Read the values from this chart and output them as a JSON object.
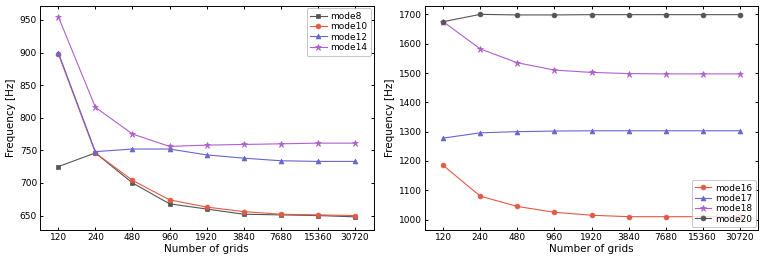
{
  "x_ticks": [
    120,
    240,
    480,
    960,
    1920,
    3840,
    7680,
    15360,
    30720
  ],
  "left_chart": {
    "ylabel": "Frequency [Hz]",
    "xlabel": "Number of grids",
    "ylim": [
      628,
      972
    ],
    "yticks": [
      650,
      700,
      750,
      800,
      850,
      900,
      950
    ],
    "series": [
      {
        "label": "mode8",
        "color": "#555555",
        "marker": "s",
        "markersize": 3.5,
        "linewidth": 0.8,
        "values": [
          725,
          746,
          700,
          668,
          660,
          652,
          651,
          650,
          648
        ]
      },
      {
        "label": "mode10",
        "color": "#e05a46",
        "marker": "o",
        "markersize": 3.5,
        "linewidth": 0.8,
        "values": [
          898,
          746,
          704,
          674,
          663,
          656,
          652,
          651,
          650
        ]
      },
      {
        "label": "mode12",
        "color": "#6666cc",
        "marker": "^",
        "markersize": 3.5,
        "linewidth": 0.8,
        "values": [
          900,
          748,
          752,
          752,
          743,
          738,
          734,
          733,
          733
        ]
      },
      {
        "label": "mode14",
        "color": "#b060cc",
        "marker": "*",
        "markersize": 5.0,
        "linewidth": 0.8,
        "values": [
          955,
          816,
          775,
          756,
          758,
          759,
          760,
          761,
          761
        ]
      }
    ]
  },
  "right_chart": {
    "ylabel": "Frequency [Hz]",
    "xlabel": "Number of grids",
    "ylim": [
      965,
      1730
    ],
    "yticks": [
      1000,
      1100,
      1200,
      1300,
      1400,
      1500,
      1600,
      1700
    ],
    "series": [
      {
        "label": "mode16",
        "color": "#e05a46",
        "marker": "o",
        "markersize": 3.5,
        "linewidth": 0.8,
        "values": [
          1185,
          1080,
          1045,
          1025,
          1015,
          1010,
          1010,
          1010,
          1010
        ]
      },
      {
        "label": "mode17",
        "color": "#6666cc",
        "marker": "^",
        "markersize": 3.5,
        "linewidth": 0.8,
        "values": [
          1278,
          1296,
          1300,
          1302,
          1303,
          1303,
          1303,
          1303,
          1303
        ]
      },
      {
        "label": "mode18",
        "color": "#b060cc",
        "marker": "*",
        "markersize": 5.0,
        "linewidth": 0.8,
        "values": [
          1675,
          1582,
          1535,
          1510,
          1502,
          1498,
          1497,
          1497,
          1497
        ]
      },
      {
        "label": "mode20",
        "color": "#555555",
        "marker": "o",
        "markersize": 3.5,
        "linewidth": 0.8,
        "values": [
          1675,
          1700,
          1698,
          1698,
          1699,
          1699,
          1699,
          1699,
          1699
        ]
      }
    ]
  },
  "tick_fontsize": 6.5,
  "label_fontsize": 7.5,
  "legend_fontsize": 6.5
}
